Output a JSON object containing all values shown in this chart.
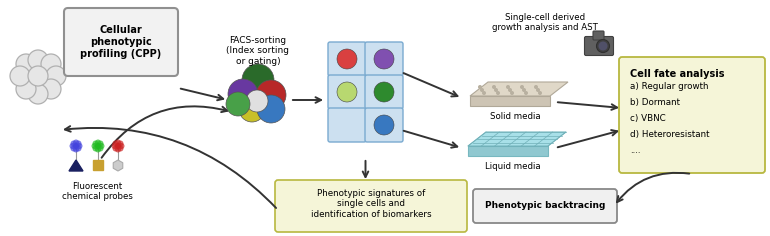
{
  "bg_color": "#ffffff",
  "fig_width": 7.7,
  "fig_height": 2.36,
  "cpp_text": "Cellular\nphenotypic\nprofiling (CPP)",
  "facs_text": "FACS-sorting\n(Index sorting\nor gating)",
  "sorted_grid_colors": [
    [
      "#d94040",
      "#8050b0"
    ],
    [
      "#b8d870",
      "#2e8a2e"
    ],
    [
      "#ffffff",
      "#3878c0"
    ]
  ],
  "single_cell_text": "Single-cell derived\ngrowth analysis and AST",
  "cell_fate_title": "Cell fate analysis",
  "cell_fate_items": [
    "a) Regular growth",
    "b) Dormant",
    "c) VBNC",
    "d) Heteroresistant",
    "...."
  ],
  "cell_fate_bg": "#f5f5d8",
  "cell_fate_edge": "#b8b840",
  "phenotypic_sig_text": "Phenotypic signatures of\nsingle cells and\nidentification of biomarkers",
  "phenotypic_sig_bg": "#f5f5d8",
  "phenotypic_sig_edge": "#b8b840",
  "backtracing_text": "Phenotypic backtracing",
  "backtracing_bg": "#f0f0f0",
  "backtracing_edge": "#888888",
  "fluorescent_text": "Fluorescent\nchemical probes",
  "solid_media_text": "Solid media",
  "liquid_media_text": "Liquid media"
}
